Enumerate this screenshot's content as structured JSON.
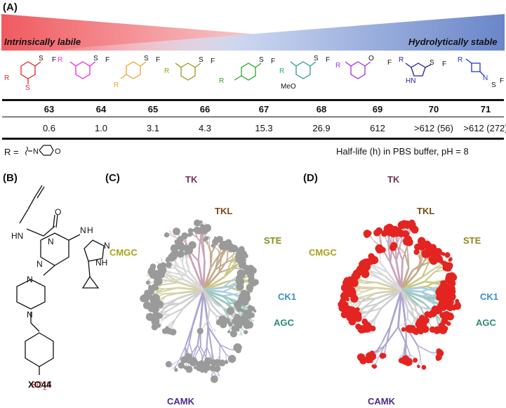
{
  "panels": {
    "a": "(A)",
    "b": "(B)",
    "c": "(C)",
    "d": "(D)"
  },
  "gradient": {
    "left_label": "Intrinsically labile",
    "right_label": "Hydrolytically stable",
    "left_color": "#f05a5f",
    "right_color": "#6a86c9"
  },
  "compounds": [
    {
      "id": "63",
      "half_life": "0.6",
      "color": "#e3262b"
    },
    {
      "id": "64",
      "half_life": "1.0",
      "color": "#e62bd8"
    },
    {
      "id": "65",
      "half_life": "3.1",
      "color": "#f0a030"
    },
    {
      "id": "66",
      "half_life": "4.3",
      "color": "#9a9a1e"
    },
    {
      "id": "67",
      "half_life": "15.3",
      "color": "#2aa52a"
    },
    {
      "id": "68",
      "half_life": "26.9",
      "color": "#2a9a8a"
    },
    {
      "id": "69",
      "half_life": "612",
      "color": "#a030e0"
    },
    {
      "id": "70",
      "half_life": ">612 (56)",
      "color": "#20209a"
    },
    {
      "id": "71",
      "half_life": ">612 (272)",
      "color": "#2030d8"
    }
  ],
  "struct_text": {
    "r": "R",
    "f": "F",
    "s": "S",
    "o": "O",
    "hn": "HN",
    "n": "N",
    "meo": "MeO"
  },
  "r_group": {
    "label": "R =",
    "n": "N",
    "o": "O"
  },
  "caption": "Half-life (h) in PBS buffer, pH = 8",
  "xo44": {
    "name": "XO44",
    "so2f": "SO",
    "so2f_sub": "2",
    "so2f_f": "F",
    "hn": "HN",
    "n": "N",
    "nh": "NH",
    "o": "O",
    "h": "H"
  },
  "kinome_groups": [
    {
      "name": "TK",
      "color": "#7b2d5c"
    },
    {
      "name": "TKL",
      "color": "#7a4a12"
    },
    {
      "name": "STE",
      "color": "#8a8a1e"
    },
    {
      "name": "CMGC",
      "color": "#a7a21a"
    },
    {
      "name": "CK1",
      "color": "#3a90c8"
    },
    {
      "name": "AGC",
      "color": "#2a8a7a"
    },
    {
      "name": "CAMK",
      "color": "#4a2a8a"
    }
  ],
  "colors": {
    "red_hit": "#e32420",
    "grey_hit": "#9a9a9a",
    "sulfonyl_red": "#e8201e"
  }
}
